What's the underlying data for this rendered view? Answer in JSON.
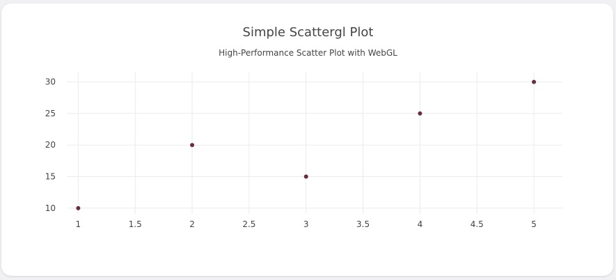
{
  "chart_data": {
    "type": "scatter",
    "title": "Simple Scattergl Plot",
    "subtitle": "High-Performance Scatter Plot with WebGL",
    "xlabel": "",
    "ylabel": "",
    "x": [
      1,
      2,
      3,
      4,
      5
    ],
    "y": [
      10,
      20,
      15,
      25,
      30
    ],
    "xlim": [
      0.9,
      5.25
    ],
    "ylim": [
      9.1,
      31.5
    ],
    "xticks": [
      1,
      1.5,
      2,
      2.5,
      3,
      3.5,
      4,
      4.5,
      5
    ],
    "xtick_labels": [
      "1",
      "1.5",
      "2",
      "2.5",
      "3",
      "3.5",
      "4",
      "4.5",
      "5"
    ],
    "yticks": [
      10,
      15,
      20,
      25,
      30
    ],
    "ytick_labels": [
      "10",
      "15",
      "20",
      "25",
      "30"
    ],
    "grid": true,
    "marker_color": "#6b2d3e",
    "grid_color": "#ebebeb"
  }
}
